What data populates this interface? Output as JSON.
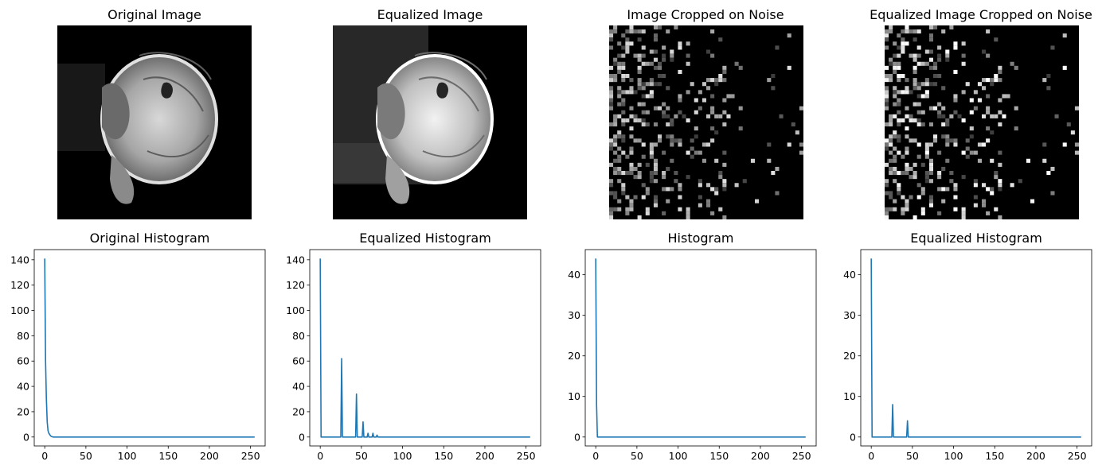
{
  "figure": {
    "image_titles": [
      "Original Image",
      "Equalized Image",
      "Image Cropped on Noise",
      "Equalized Image Cropped on Noise"
    ]
  },
  "chart_data": [
    {
      "type": "line",
      "title": "Original Histogram",
      "series_color": "#1f77b4",
      "x": [
        0,
        1,
        2,
        3,
        4,
        5,
        6,
        7,
        8,
        9,
        10,
        20,
        50,
        100,
        150,
        200,
        255
      ],
      "y": [
        141,
        60,
        30,
        12,
        5,
        3,
        2,
        1,
        0.5,
        0.3,
        0,
        0,
        0,
        0,
        0,
        0,
        0
      ],
      "xlim": [
        -12.75,
        267.75
      ],
      "ylim": [
        -7.05,
        148.05
      ],
      "xticks": [
        0,
        50,
        100,
        150,
        200,
        250
      ],
      "yticks": [
        0,
        20,
        40,
        60,
        80,
        100,
        120,
        140
      ]
    },
    {
      "type": "line",
      "title": "Equalized Histogram",
      "series_color": "#1f77b4",
      "x": [
        0,
        1,
        25,
        26,
        27,
        43,
        44,
        45,
        51,
        52,
        53,
        57,
        58,
        59,
        63,
        64,
        65,
        68,
        69,
        70,
        255
      ],
      "y": [
        141,
        0,
        0,
        62,
        0,
        0,
        34,
        0,
        0,
        12,
        0,
        0,
        3,
        0,
        0,
        3,
        0,
        0,
        1.5,
        0,
        0
      ],
      "xlim": [
        -12.75,
        267.75
      ],
      "ylim": [
        -7.05,
        148.05
      ],
      "xticks": [
        0,
        50,
        100,
        150,
        200,
        250
      ],
      "yticks": [
        0,
        20,
        40,
        60,
        80,
        100,
        120,
        140
      ]
    },
    {
      "type": "line",
      "title": "Histogram",
      "series_color": "#1f77b4",
      "x": [
        0,
        1,
        2,
        3,
        255
      ],
      "y": [
        44,
        8,
        0,
        0,
        0
      ],
      "xlim": [
        -12.75,
        267.75
      ],
      "ylim": [
        -2.2,
        46.2
      ],
      "xticks": [
        0,
        50,
        100,
        150,
        200,
        250
      ],
      "yticks": [
        0,
        10,
        20,
        30,
        40
      ]
    },
    {
      "type": "line",
      "title": "Equalized Histogram",
      "series_color": "#1f77b4",
      "x": [
        0,
        1,
        25,
        26,
        27,
        43,
        44,
        45,
        255
      ],
      "y": [
        44,
        0,
        0,
        8,
        0,
        0,
        4,
        0,
        0
      ],
      "xlim": [
        -12.75,
        267.75
      ],
      "ylim": [
        -2.2,
        46.2
      ],
      "xticks": [
        0,
        50,
        100,
        150,
        200,
        250
      ],
      "yticks": [
        0,
        10,
        20,
        30,
        40
      ]
    }
  ]
}
